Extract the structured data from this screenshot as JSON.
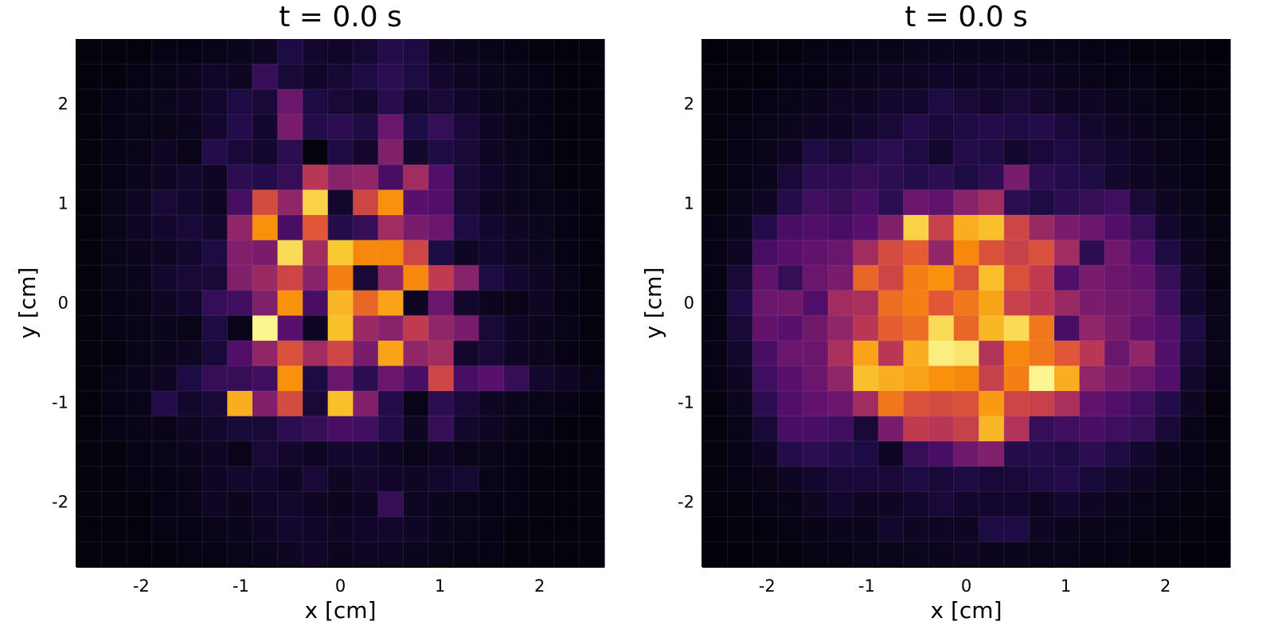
{
  "chart_data": [
    {
      "type": "heatmap",
      "title": "t = 0.0 s",
      "xlabel": "x [cm]",
      "ylabel": "y [cm]",
      "xlim": [
        -2.65,
        2.65
      ],
      "ylim": [
        -2.65,
        2.65
      ],
      "x_ticks": [
        -2,
        -1,
        0,
        1,
        2
      ],
      "x_tick_labels": [
        "-2",
        "-1",
        "0",
        "1",
        "2"
      ],
      "y_ticks": [
        -2,
        -1,
        0,
        1,
        2
      ],
      "y_tick_labels": [
        "-2",
        "-1",
        "0",
        "1",
        "2"
      ],
      "colormap": "inferno",
      "grid": true,
      "grid_size": [
        21,
        21
      ],
      "value_range": [
        0,
        1
      ],
      "values": [
        [
          0.02,
          0.02,
          0.02,
          0.03,
          0.03,
          0.04,
          0.05,
          0.06,
          0.12,
          0.08,
          0.07,
          0.09,
          0.14,
          0.12,
          0.06,
          0.05,
          0.04,
          0.03,
          0.02,
          0.02,
          0.02
        ],
        [
          0.02,
          0.02,
          0.03,
          0.04,
          0.05,
          0.07,
          0.06,
          0.18,
          0.1,
          0.07,
          0.09,
          0.12,
          0.16,
          0.12,
          0.08,
          0.06,
          0.05,
          0.04,
          0.03,
          0.02,
          0.02
        ],
        [
          0.02,
          0.03,
          0.04,
          0.05,
          0.06,
          0.08,
          0.12,
          0.1,
          0.3,
          0.12,
          0.1,
          0.08,
          0.15,
          0.08,
          0.1,
          0.07,
          0.05,
          0.04,
          0.03,
          0.02,
          0.02
        ],
        [
          0.02,
          0.03,
          0.04,
          0.04,
          0.05,
          0.08,
          0.14,
          0.08,
          0.34,
          0.14,
          0.16,
          0.12,
          0.3,
          0.12,
          0.18,
          0.1,
          0.06,
          0.04,
          0.03,
          0.02,
          0.02
        ],
        [
          0.02,
          0.03,
          0.04,
          0.06,
          0.04,
          0.14,
          0.1,
          0.08,
          0.16,
          0.02,
          0.12,
          0.08,
          0.36,
          0.08,
          0.12,
          0.1,
          0.06,
          0.05,
          0.03,
          0.02,
          0.02
        ],
        [
          0.02,
          0.03,
          0.05,
          0.06,
          0.08,
          0.06,
          0.16,
          0.14,
          0.18,
          0.5,
          0.38,
          0.4,
          0.22,
          0.44,
          0.24,
          0.1,
          0.07,
          0.05,
          0.04,
          0.02,
          0.02
        ],
        [
          0.02,
          0.04,
          0.06,
          0.1,
          0.08,
          0.06,
          0.22,
          0.58,
          0.4,
          0.9,
          0.08,
          0.56,
          0.76,
          0.26,
          0.24,
          0.1,
          0.06,
          0.05,
          0.04,
          0.03,
          0.02
        ],
        [
          0.02,
          0.04,
          0.06,
          0.08,
          0.1,
          0.08,
          0.4,
          0.76,
          0.22,
          0.62,
          0.14,
          0.18,
          0.44,
          0.34,
          0.3,
          0.12,
          0.08,
          0.06,
          0.05,
          0.03,
          0.02
        ],
        [
          0.02,
          0.04,
          0.05,
          0.06,
          0.08,
          0.12,
          0.36,
          0.34,
          0.92,
          0.44,
          0.88,
          0.74,
          0.74,
          0.56,
          0.12,
          0.06,
          0.08,
          0.06,
          0.05,
          0.03,
          0.02
        ],
        [
          0.02,
          0.04,
          0.05,
          0.08,
          0.1,
          0.1,
          0.36,
          0.42,
          0.56,
          0.38,
          0.72,
          0.1,
          0.4,
          0.74,
          0.52,
          0.38,
          0.12,
          0.08,
          0.06,
          0.04,
          0.02
        ],
        [
          0.02,
          0.03,
          0.04,
          0.06,
          0.08,
          0.18,
          0.2,
          0.36,
          0.76,
          0.22,
          0.84,
          0.66,
          0.8,
          0.06,
          0.3,
          0.08,
          0.05,
          0.04,
          0.06,
          0.03,
          0.02
        ],
        [
          0.02,
          0.03,
          0.04,
          0.05,
          0.04,
          0.12,
          0.04,
          0.98,
          0.26,
          0.06,
          0.86,
          0.42,
          0.38,
          0.52,
          0.4,
          0.34,
          0.1,
          0.06,
          0.05,
          0.04,
          0.02
        ],
        [
          0.02,
          0.02,
          0.04,
          0.05,
          0.06,
          0.1,
          0.24,
          0.4,
          0.6,
          0.44,
          0.56,
          0.34,
          0.8,
          0.4,
          0.44,
          0.08,
          0.1,
          0.06,
          0.05,
          0.03,
          0.02
        ],
        [
          0.02,
          0.04,
          0.05,
          0.06,
          0.12,
          0.18,
          0.18,
          0.2,
          0.76,
          0.12,
          0.3,
          0.16,
          0.3,
          0.22,
          0.56,
          0.22,
          0.26,
          0.18,
          0.08,
          0.06,
          0.04
        ],
        [
          0.02,
          0.03,
          0.04,
          0.14,
          0.08,
          0.1,
          0.82,
          0.36,
          0.58,
          0.1,
          0.86,
          0.36,
          0.14,
          0.04,
          0.16,
          0.1,
          0.06,
          0.05,
          0.04,
          0.03,
          0.02
        ],
        [
          0.02,
          0.03,
          0.04,
          0.04,
          0.06,
          0.08,
          0.1,
          0.1,
          0.16,
          0.18,
          0.22,
          0.2,
          0.14,
          0.06,
          0.18,
          0.08,
          0.06,
          0.04,
          0.03,
          0.02,
          0.02
        ],
        [
          0.02,
          0.02,
          0.03,
          0.04,
          0.05,
          0.06,
          0.04,
          0.1,
          0.08,
          0.06,
          0.08,
          0.08,
          0.06,
          0.04,
          0.06,
          0.04,
          0.04,
          0.03,
          0.02,
          0.02,
          0.02
        ],
        [
          0.02,
          0.02,
          0.03,
          0.03,
          0.04,
          0.06,
          0.08,
          0.08,
          0.06,
          0.1,
          0.06,
          0.08,
          0.07,
          0.06,
          0.08,
          0.09,
          0.04,
          0.03,
          0.02,
          0.02,
          0.02
        ],
        [
          0.02,
          0.02,
          0.02,
          0.03,
          0.04,
          0.06,
          0.05,
          0.07,
          0.08,
          0.06,
          0.05,
          0.06,
          0.18,
          0.06,
          0.05,
          0.04,
          0.03,
          0.03,
          0.02,
          0.02,
          0.02
        ],
        [
          0.02,
          0.02,
          0.02,
          0.03,
          0.03,
          0.04,
          0.05,
          0.06,
          0.08,
          0.07,
          0.06,
          0.07,
          0.08,
          0.06,
          0.05,
          0.04,
          0.03,
          0.02,
          0.02,
          0.02,
          0.02
        ],
        [
          0.02,
          0.02,
          0.02,
          0.02,
          0.03,
          0.03,
          0.04,
          0.05,
          0.06,
          0.07,
          0.05,
          0.06,
          0.06,
          0.05,
          0.04,
          0.03,
          0.03,
          0.02,
          0.02,
          0.02,
          0.02
        ]
      ]
    },
    {
      "type": "heatmap",
      "title": "t = 0.0 s",
      "xlabel": "x [cm]",
      "ylabel": "y [cm]",
      "xlim": [
        -2.65,
        2.65
      ],
      "ylim": [
        -2.65,
        2.65
      ],
      "x_ticks": [
        -2,
        -1,
        0,
        1,
        2
      ],
      "x_tick_labels": [
        "-2",
        "-1",
        "0",
        "1",
        "2"
      ],
      "y_ticks": [
        -2,
        -1,
        0,
        1,
        2
      ],
      "y_tick_labels": [
        "-2",
        "-1",
        "0",
        "1",
        "2"
      ],
      "colormap": "inferno",
      "grid": true,
      "grid_size": [
        21,
        21
      ],
      "value_range": [
        0,
        1
      ],
      "values": [
        [
          0.01,
          0.02,
          0.02,
          0.02,
          0.03,
          0.03,
          0.04,
          0.04,
          0.05,
          0.05,
          0.05,
          0.05,
          0.05,
          0.04,
          0.04,
          0.03,
          0.03,
          0.02,
          0.02,
          0.02,
          0.01
        ],
        [
          0.02,
          0.02,
          0.02,
          0.03,
          0.03,
          0.04,
          0.05,
          0.06,
          0.06,
          0.07,
          0.06,
          0.07,
          0.06,
          0.06,
          0.05,
          0.04,
          0.03,
          0.03,
          0.02,
          0.02,
          0.02
        ],
        [
          0.02,
          0.02,
          0.03,
          0.04,
          0.05,
          0.06,
          0.06,
          0.08,
          0.08,
          0.12,
          0.1,
          0.08,
          0.1,
          0.08,
          0.06,
          0.06,
          0.05,
          0.04,
          0.03,
          0.02,
          0.02
        ],
        [
          0.02,
          0.03,
          0.04,
          0.05,
          0.06,
          0.06,
          0.08,
          0.1,
          0.14,
          0.1,
          0.12,
          0.14,
          0.12,
          0.14,
          0.1,
          0.08,
          0.06,
          0.05,
          0.04,
          0.03,
          0.02
        ],
        [
          0.02,
          0.03,
          0.04,
          0.06,
          0.12,
          0.1,
          0.14,
          0.16,
          0.12,
          0.08,
          0.14,
          0.12,
          0.08,
          0.1,
          0.12,
          0.1,
          0.08,
          0.06,
          0.04,
          0.03,
          0.02
        ],
        [
          0.02,
          0.03,
          0.05,
          0.1,
          0.16,
          0.16,
          0.18,
          0.16,
          0.14,
          0.16,
          0.12,
          0.16,
          0.34,
          0.16,
          0.14,
          0.12,
          0.08,
          0.06,
          0.05,
          0.03,
          0.02
        ],
        [
          0.02,
          0.04,
          0.06,
          0.14,
          0.2,
          0.18,
          0.22,
          0.16,
          0.3,
          0.28,
          0.38,
          0.44,
          0.16,
          0.12,
          0.16,
          0.18,
          0.2,
          0.1,
          0.06,
          0.04,
          0.02
        ],
        [
          0.03,
          0.05,
          0.14,
          0.22,
          0.24,
          0.22,
          0.26,
          0.36,
          0.9,
          0.54,
          0.82,
          0.86,
          0.56,
          0.42,
          0.34,
          0.3,
          0.24,
          0.18,
          0.08,
          0.05,
          0.03
        ],
        [
          0.03,
          0.06,
          0.22,
          0.26,
          0.28,
          0.3,
          0.44,
          0.58,
          0.64,
          0.4,
          0.74,
          0.6,
          0.54,
          0.6,
          0.44,
          0.16,
          0.32,
          0.24,
          0.12,
          0.06,
          0.03
        ],
        [
          0.03,
          0.1,
          0.28,
          0.18,
          0.3,
          0.34,
          0.66,
          0.56,
          0.72,
          0.76,
          0.6,
          0.86,
          0.6,
          0.52,
          0.24,
          0.34,
          0.3,
          0.28,
          0.18,
          0.08,
          0.03
        ],
        [
          0.03,
          0.12,
          0.3,
          0.32,
          0.24,
          0.44,
          0.46,
          0.68,
          0.72,
          0.62,
          0.7,
          0.8,
          0.54,
          0.5,
          0.42,
          0.34,
          0.32,
          0.3,
          0.2,
          0.08,
          0.04
        ],
        [
          0.03,
          0.1,
          0.28,
          0.26,
          0.32,
          0.4,
          0.5,
          0.64,
          0.68,
          0.92,
          0.66,
          0.84,
          0.92,
          0.7,
          0.22,
          0.4,
          0.34,
          0.28,
          0.24,
          0.12,
          0.04
        ],
        [
          0.03,
          0.08,
          0.22,
          0.3,
          0.3,
          0.46,
          0.8,
          0.5,
          0.82,
          0.96,
          0.94,
          0.48,
          0.74,
          0.7,
          0.62,
          0.5,
          0.3,
          0.4,
          0.24,
          0.1,
          0.04
        ],
        [
          0.03,
          0.06,
          0.2,
          0.26,
          0.3,
          0.4,
          0.86,
          0.82,
          0.8,
          0.76,
          0.74,
          0.54,
          0.72,
          0.98,
          0.82,
          0.4,
          0.34,
          0.3,
          0.24,
          0.08,
          0.03
        ],
        [
          0.02,
          0.05,
          0.16,
          0.24,
          0.28,
          0.3,
          0.44,
          0.7,
          0.6,
          0.58,
          0.6,
          0.78,
          0.56,
          0.54,
          0.46,
          0.28,
          0.24,
          0.2,
          0.14,
          0.06,
          0.02
        ],
        [
          0.02,
          0.04,
          0.1,
          0.22,
          0.22,
          0.2,
          0.1,
          0.34,
          0.52,
          0.5,
          0.54,
          0.84,
          0.48,
          0.18,
          0.2,
          0.22,
          0.2,
          0.18,
          0.1,
          0.04,
          0.02
        ],
        [
          0.02,
          0.03,
          0.06,
          0.14,
          0.16,
          0.14,
          0.12,
          0.06,
          0.18,
          0.22,
          0.32,
          0.36,
          0.14,
          0.14,
          0.12,
          0.16,
          0.12,
          0.08,
          0.05,
          0.03,
          0.02
        ],
        [
          0.02,
          0.03,
          0.04,
          0.06,
          0.08,
          0.1,
          0.1,
          0.1,
          0.12,
          0.1,
          0.12,
          0.1,
          0.1,
          0.12,
          0.14,
          0.1,
          0.08,
          0.06,
          0.04,
          0.03,
          0.02
        ],
        [
          0.02,
          0.02,
          0.03,
          0.04,
          0.06,
          0.08,
          0.06,
          0.06,
          0.08,
          0.1,
          0.08,
          0.08,
          0.08,
          0.06,
          0.08,
          0.06,
          0.05,
          0.04,
          0.03,
          0.02,
          0.02
        ],
        [
          0.01,
          0.02,
          0.02,
          0.03,
          0.04,
          0.05,
          0.05,
          0.08,
          0.06,
          0.06,
          0.06,
          0.12,
          0.12,
          0.06,
          0.05,
          0.04,
          0.04,
          0.03,
          0.02,
          0.02,
          0.01
        ],
        [
          0.01,
          0.01,
          0.02,
          0.02,
          0.03,
          0.03,
          0.04,
          0.04,
          0.05,
          0.05,
          0.06,
          0.05,
          0.05,
          0.04,
          0.04,
          0.03,
          0.03,
          0.02,
          0.02,
          0.01,
          0.01
        ]
      ]
    }
  ]
}
